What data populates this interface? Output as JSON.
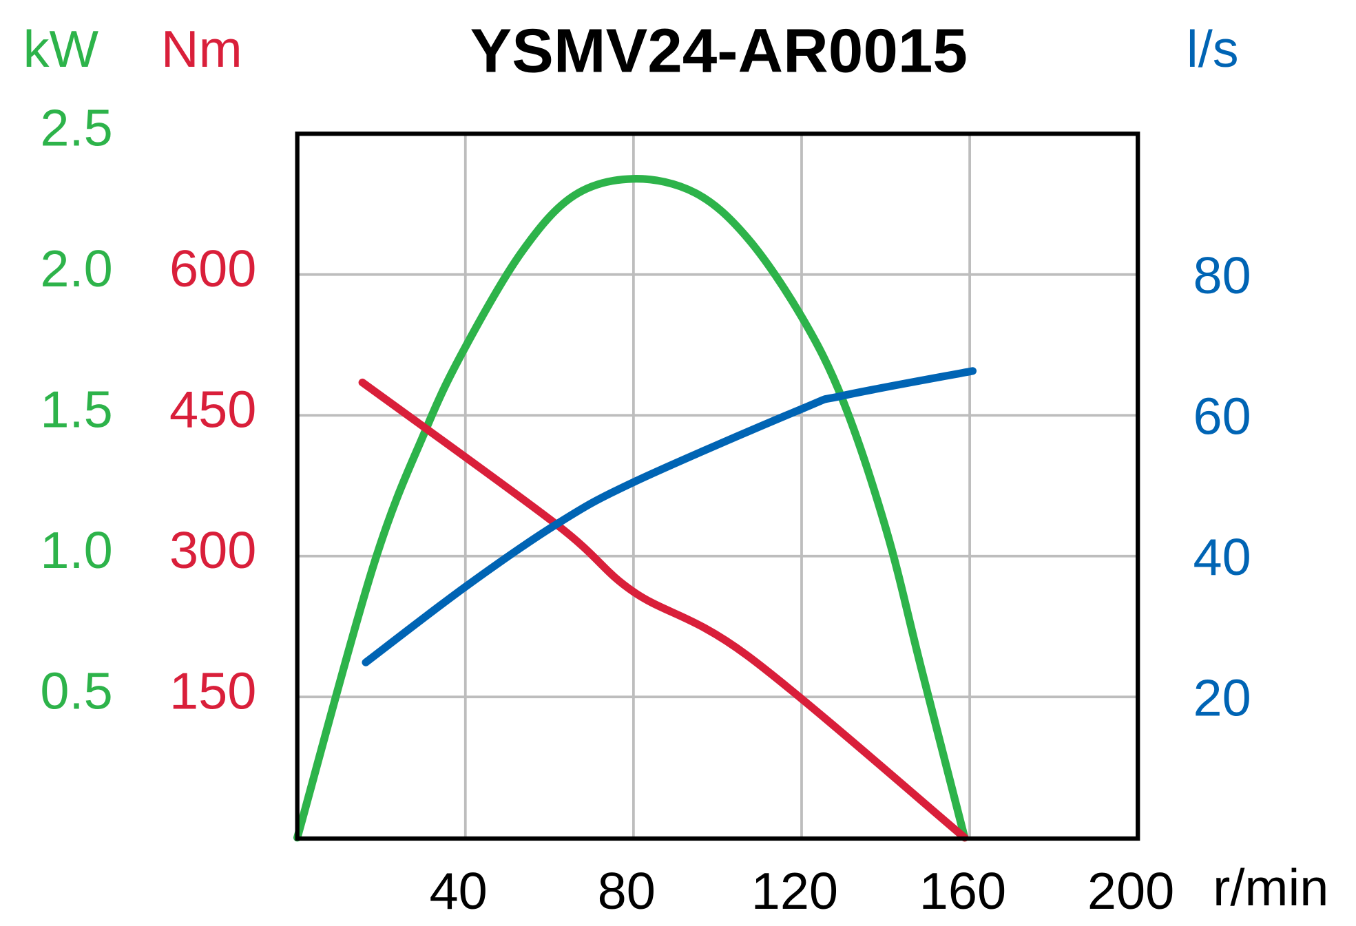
{
  "chart_data": {
    "type": "line",
    "title": "YSMV24-AR0015",
    "xlabel": "r/min",
    "xlim": [
      0,
      200
    ],
    "x_ticks": [
      "40",
      "80",
      "120",
      "160",
      "200"
    ],
    "grid": true,
    "axes": [
      {
        "id": "kw",
        "label": "kW",
        "side": "left-outer",
        "color": "#2db34a",
        "ylim": [
          0,
          2.5
        ],
        "ticks": [
          {
            "v": 0.5,
            "t": "0.5"
          },
          {
            "v": 1.0,
            "t": "1.0"
          },
          {
            "v": 1.5,
            "t": "1.5"
          },
          {
            "v": 2.0,
            "t": "2.0"
          },
          {
            "v": 2.5,
            "t": "2.5"
          }
        ]
      },
      {
        "id": "nm",
        "label": "Nm",
        "side": "left-inner",
        "color": "#d91f3a",
        "ylim": [
          0,
          750
        ],
        "ticks": [
          {
            "v": 150,
            "t": "150"
          },
          {
            "v": 300,
            "t": "300"
          },
          {
            "v": 450,
            "t": "450"
          },
          {
            "v": 600,
            "t": "600"
          }
        ]
      },
      {
        "id": "ls",
        "label": "l/s",
        "side": "right",
        "color": "#0064b4",
        "ylim": [
          0,
          100
        ],
        "ticks": [
          {
            "v": 20,
            "t": "20"
          },
          {
            "v": 40,
            "t": "40"
          },
          {
            "v": 60,
            "t": "60"
          },
          {
            "v": 80,
            "t": "80"
          }
        ]
      }
    ],
    "series": [
      {
        "name": "power",
        "axis": "kw",
        "color": "#2db34a",
        "x": [
          0,
          18.2,
          30.6,
          39.9,
          53.4,
          65.8,
          80,
          94.7,
          107.1,
          120,
          129.9,
          140.2,
          148.5,
          158.8
        ],
        "y": [
          0,
          0.97,
          1.45,
          1.74,
          2.08,
          2.28,
          2.34,
          2.29,
          2.13,
          1.85,
          1.55,
          1.09,
          0.6,
          0
        ]
      },
      {
        "name": "torque",
        "axis": "nm",
        "color": "#d91f3a",
        "x": [
          15.5,
          61.6,
          80,
          107.1,
          158.8
        ],
        "y": [
          485,
          334,
          262,
          194,
          0
        ]
      },
      {
        "name": "flow",
        "axis": "ls",
        "color": "#0064b4",
        "x": [
          16.3,
          39.9,
          61.6,
          80,
          120,
          129.9,
          160.7
        ],
        "y": [
          24.9,
          35.6,
          44.5,
          50.5,
          60.9,
          62.8,
          66.3
        ]
      }
    ]
  }
}
